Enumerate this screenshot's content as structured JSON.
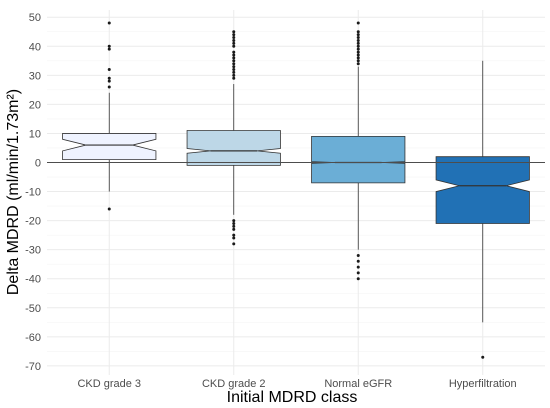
{
  "chart_data": {
    "type": "boxplot",
    "title": "",
    "xlabel": "Initial MDRD class",
    "ylabel": "Delta MDRD (ml/min/1.73m²)",
    "ylim": [
      -72,
      51
    ],
    "yticks": [
      50,
      40,
      30,
      20,
      10,
      0,
      -10,
      -20,
      -30,
      -40,
      -50,
      -60,
      -70
    ],
    "grid": true,
    "notched": true,
    "reference_line_y": 0,
    "categories": [
      "CKD grade 3",
      "CKD grade 2",
      "Normal eGFR",
      "Hyperfiltration"
    ],
    "boxes": [
      {
        "category": "CKD grade 3",
        "whisker_low": -10,
        "q1": 1,
        "median": 6,
        "q3": 10,
        "whisker_high": 24,
        "notch": [
          4,
          8
        ],
        "fill": "#eff3ff",
        "outliers": [
          48,
          40,
          39,
          32,
          29,
          28,
          26,
          -16
        ]
      },
      {
        "category": "CKD grade 2",
        "whisker_low": -18,
        "q1": -1,
        "median": 4,
        "q3": 11,
        "whisker_high": 27,
        "notch": [
          3.2,
          4.8
        ],
        "fill": "#bdd7e7",
        "outliers": [
          45,
          44,
          43,
          42,
          41,
          40,
          38,
          37,
          36,
          35,
          34,
          33,
          32,
          31,
          30,
          29,
          -20,
          -21,
          -22,
          -23,
          -25,
          -26,
          -28
        ]
      },
      {
        "category": "Normal eGFR",
        "whisker_low": -30,
        "q1": -7,
        "median": 0,
        "q3": 9,
        "whisker_high": 33,
        "notch": [
          -0.3,
          0.3
        ],
        "fill": "#6baed6",
        "outliers": [
          48,
          45,
          44,
          43,
          42,
          41,
          40,
          39,
          38,
          37,
          36,
          35,
          34,
          -32,
          -34,
          -36,
          -38,
          -40
        ]
      },
      {
        "category": "Hyperfiltration",
        "whisker_low": -55,
        "q1": -21,
        "median": -8,
        "q3": 2,
        "whisker_high": 35,
        "notch": [
          -10,
          -6
        ],
        "fill": "#2171b5",
        "outliers": [
          -67
        ]
      }
    ]
  }
}
